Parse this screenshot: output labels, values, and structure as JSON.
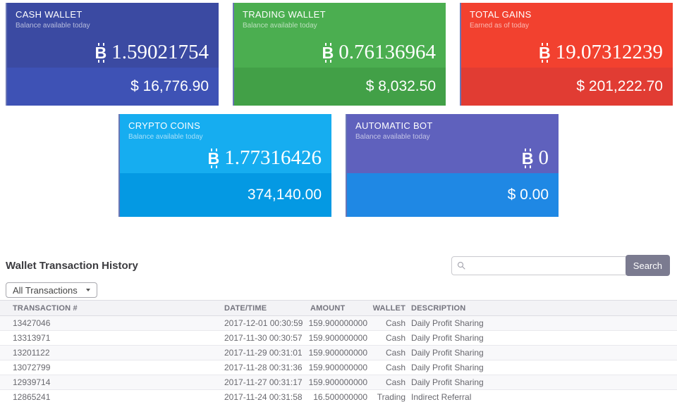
{
  "icons": {
    "btc_symbol": "B"
  },
  "cards": [
    {
      "title": "CASH WALLET",
      "subtitle": "Balance available today",
      "btc_value": "1.59021754",
      "fiat_value": "$ 16,776.90",
      "color_top": "#3b4aa2",
      "color_bottom": "#3e52b5"
    },
    {
      "title": "TRADING WALLET",
      "subtitle": "Balance available today",
      "btc_value": "0.76136964",
      "fiat_value": "$ 8,032.50",
      "color_top": "#4bae50",
      "color_bottom": "#42a047"
    },
    {
      "title": "TOTAL GAINS",
      "subtitle": "Earned as of today",
      "btc_value": "19.07312239",
      "fiat_value": "$ 201,222.70",
      "color_top": "#f2412f",
      "color_bottom": "#e13c33"
    },
    {
      "title": "CRYPTO COINS",
      "subtitle": "Balance available today",
      "btc_value": "1.77316426",
      "fiat_value": "374,140.00",
      "color_top": "#16adf0",
      "color_bottom": "#0499e3"
    },
    {
      "title": "AUTOMATIC BOT",
      "subtitle": "Balance available today",
      "btc_value": "0",
      "fiat_value": "$ 0.00",
      "color_top": "#5f61bd",
      "color_bottom": "#1f88e4"
    }
  ],
  "history": {
    "heading": "Wallet Transaction History",
    "search_value": "",
    "search_button_label": "Search",
    "filter_selected": "All Transactions",
    "columns": [
      "TRANSACTION #",
      "DATE/TIME",
      "AMOUNT",
      "WALLET",
      "DESCRIPTION"
    ],
    "rows": [
      [
        "13427046",
        "2017-12-01 00:30:59",
        "159.900000000",
        "Cash",
        "Daily Profit Sharing"
      ],
      [
        "13313971",
        "2017-11-30 00:30:57",
        "159.900000000",
        "Cash",
        "Daily Profit Sharing"
      ],
      [
        "13201122",
        "2017-11-29 00:31:01",
        "159.900000000",
        "Cash",
        "Daily Profit Sharing"
      ],
      [
        "13072799",
        "2017-11-28 00:31:36",
        "159.900000000",
        "Cash",
        "Daily Profit Sharing"
      ],
      [
        "12939714",
        "2017-11-27 00:31:17",
        "159.900000000",
        "Cash",
        "Daily Profit Sharing"
      ],
      [
        "12865241",
        "2017-11-24 00:31:58",
        "16.500000000",
        "Trading",
        "Indirect Referral"
      ]
    ]
  }
}
